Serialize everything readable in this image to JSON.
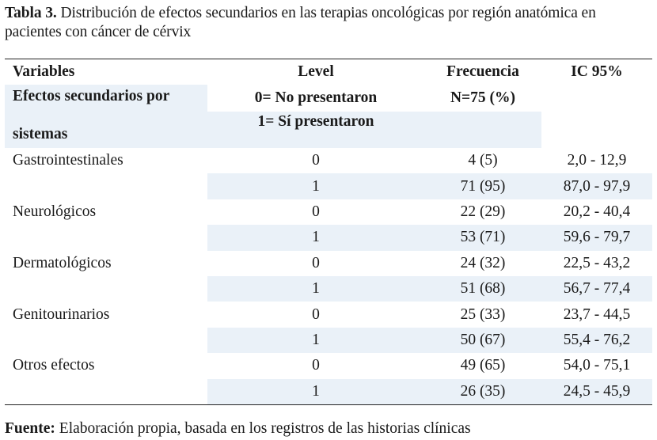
{
  "caption": {
    "label": "Tabla 3.",
    "text": "Distribución de efectos secundarios en las terapias oncológicas por región anatómica en pacientes con cáncer de cérvix"
  },
  "header": {
    "col1": "Variables",
    "col2": "Level",
    "col3": "Frecuencia",
    "col4": "IC 95%",
    "sub1_line1": "Efectos secundarios por",
    "sub1_line2": "sistemas",
    "sub2_line1": "0= No presentaron",
    "sub2_line2": "1= Sí presentaron",
    "sub3": "N=75 (%)"
  },
  "rows": [
    {
      "variable": "Gastrointestinales",
      "level": "0",
      "freq": "4 (5)",
      "ci": "2,0 - 12,9"
    },
    {
      "variable": "",
      "level": "1",
      "freq": "71 (95)",
      "ci": "87,0 - 97,9"
    },
    {
      "variable": "Neurológicos",
      "level": "0",
      "freq": "22 (29)",
      "ci": "20,2 - 40,4"
    },
    {
      "variable": "",
      "level": "1",
      "freq": "53 (71)",
      "ci": "59,6 - 79,7"
    },
    {
      "variable": "Dermatológicos",
      "level": "0",
      "freq": "24 (32)",
      "ci": "22,5 - 43,2"
    },
    {
      "variable": "",
      "level": "1",
      "freq": "51 (68)",
      "ci": "56,7 - 77,4"
    },
    {
      "variable": "Genitourinarios",
      "level": "0",
      "freq": "25 (33)",
      "ci": "23,7 - 44,5"
    },
    {
      "variable": "",
      "level": "1",
      "freq": "50 (67)",
      "ci": "55,4 - 76,2"
    },
    {
      "variable": "Otros efectos",
      "level": "0",
      "freq": "49 (65)",
      "ci": "54,0 - 75,1"
    },
    {
      "variable": "",
      "level": "1",
      "freq": "26 (35)",
      "ci": "24,5 - 45,9"
    }
  ],
  "footer": {
    "label": "Fuente:",
    "text": "Elaboración propia, basada en los registros de las historias clínicas"
  }
}
